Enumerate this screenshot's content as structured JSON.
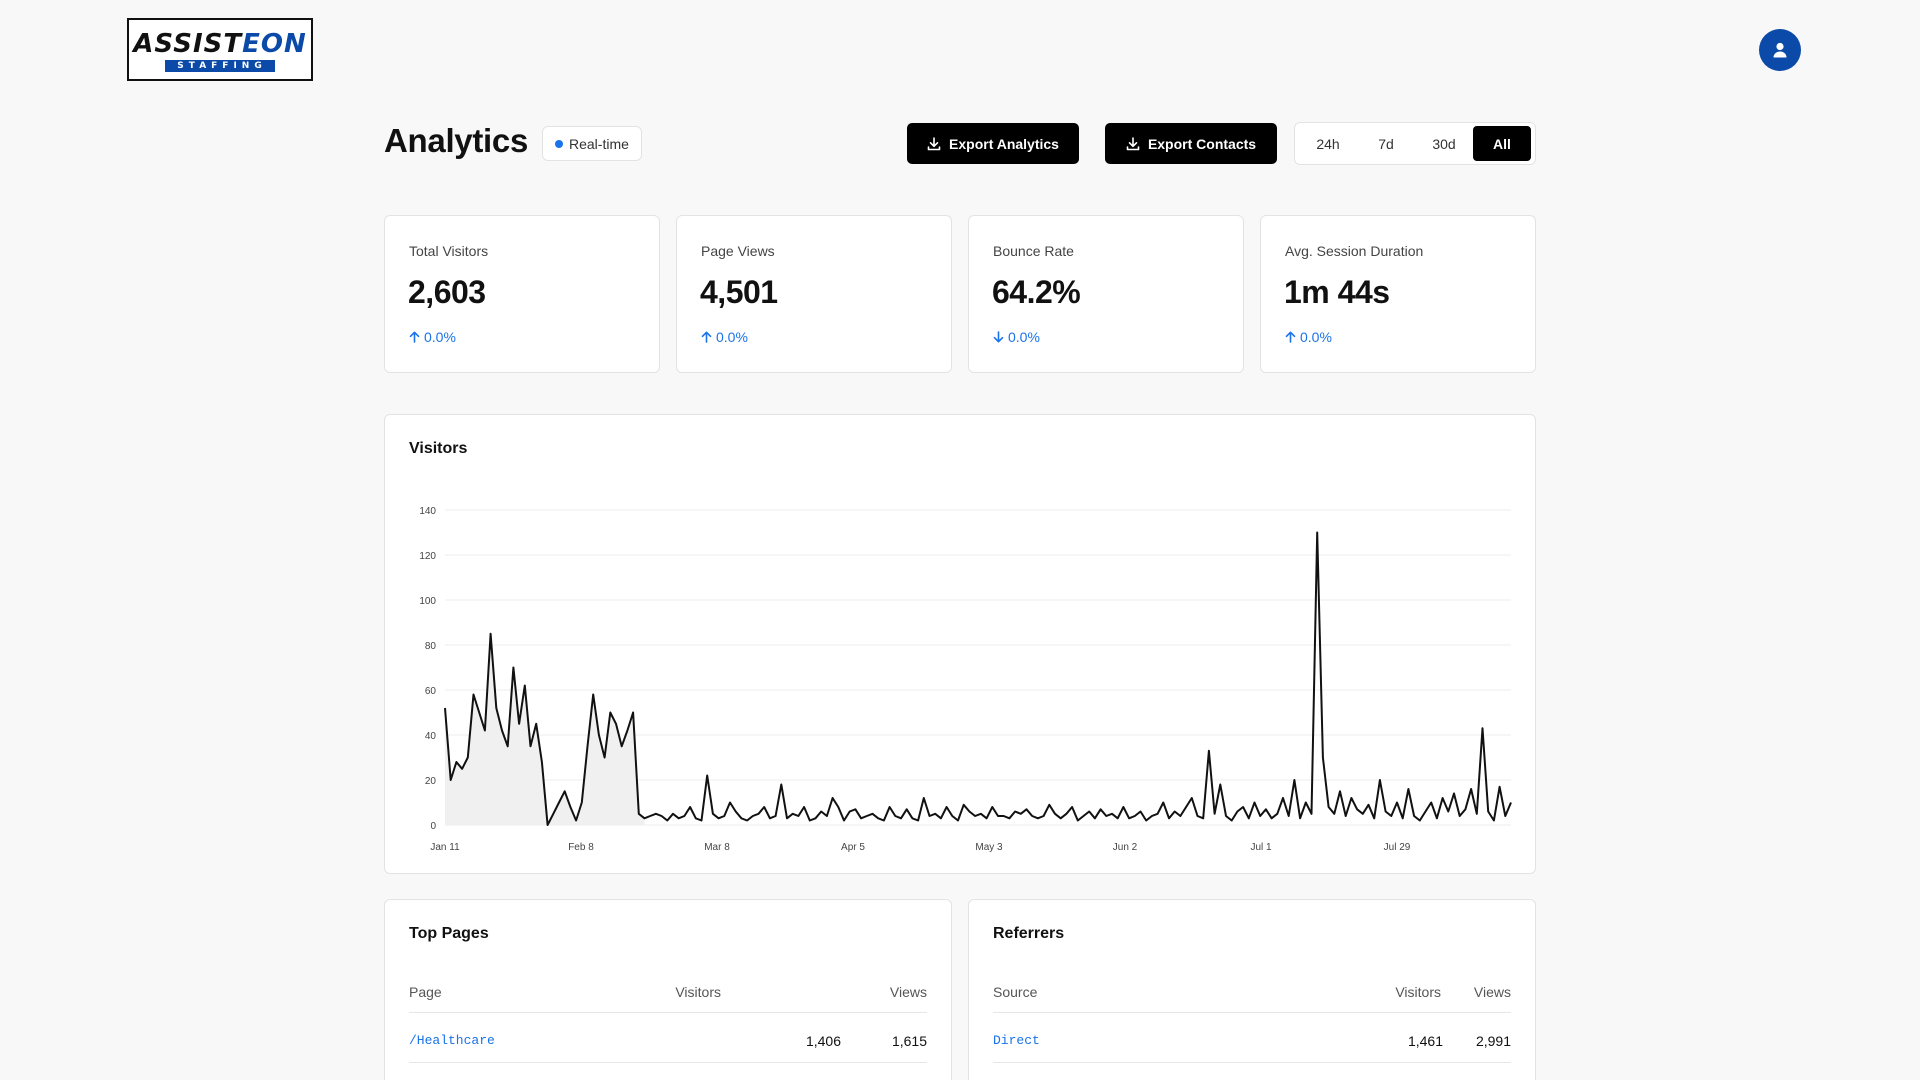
{
  "logo": {
    "word_dark": "ASSIST",
    "word_blue": "EON",
    "tagline": "STAFFING"
  },
  "header": {
    "title": "Analytics",
    "realtime_label": "Real-time",
    "export_analytics": "Export Analytics",
    "export_contacts": "Export Contacts",
    "ranges": [
      "24h",
      "7d",
      "30d",
      "All"
    ],
    "active_range": "All"
  },
  "stats": [
    {
      "label": "Total Visitors",
      "value": "2,603",
      "change": "0.0%",
      "direction": "up"
    },
    {
      "label": "Page Views",
      "value": "4,501",
      "change": "0.0%",
      "direction": "up"
    },
    {
      "label": "Bounce Rate",
      "value": "64.2%",
      "change": "0.0%",
      "direction": "down"
    },
    {
      "label": "Avg. Session Duration",
      "value": "1m 44s",
      "change": "0.0%",
      "direction": "up"
    }
  ],
  "chart_card": {
    "title": "Visitors"
  },
  "chart_data": {
    "type": "area",
    "title": "Visitors",
    "x_start": "Jan 11",
    "x_end": "Aug 21",
    "x_tick_labels": [
      "Jan 11",
      "Feb 8",
      "Mar 8",
      "Apr 5",
      "May 3",
      "Jun 2",
      "Jul 1",
      "Jul 29"
    ],
    "ylim": [
      0,
      140
    ],
    "y_ticks": [
      0,
      20,
      40,
      60,
      80,
      100,
      120,
      140
    ],
    "grid": true,
    "series": [
      {
        "values": [
          52,
          20,
          28,
          25,
          30,
          58,
          50,
          42,
          85,
          52,
          42,
          35,
          70,
          45,
          62,
          35,
          45,
          28,
          0,
          5,
          10,
          15,
          8,
          2,
          10,
          35,
          58,
          40,
          30,
          50,
          45,
          35,
          42,
          50,
          5,
          3,
          4,
          5,
          4,
          2,
          5,
          3,
          4,
          8,
          3,
          2,
          22,
          5,
          3,
          4,
          10,
          6,
          3,
          2,
          4,
          5,
          8,
          3,
          4,
          18,
          3,
          5,
          4,
          8,
          2,
          3,
          6,
          4,
          12,
          8,
          2,
          6,
          7,
          3,
          4,
          5,
          3,
          2,
          8,
          4,
          3,
          7,
          3,
          2,
          12,
          4,
          5,
          3,
          8,
          4,
          2,
          9,
          6,
          4,
          5,
          3,
          8,
          4,
          4,
          3,
          6,
          5,
          7,
          4,
          3,
          4,
          9,
          5,
          3,
          5,
          8,
          2,
          4,
          6,
          3,
          7,
          4,
          5,
          3,
          8,
          3,
          4,
          6,
          2,
          4,
          5,
          10,
          3,
          6,
          4,
          8,
          12,
          4,
          3,
          33,
          5,
          18,
          4,
          2,
          6,
          8,
          3,
          10,
          4,
          7,
          3,
          5,
          12,
          4,
          20,
          3,
          10,
          5,
          130,
          30,
          8,
          5,
          15,
          4,
          12,
          7,
          5,
          9,
          3,
          20,
          6,
          4,
          10,
          3,
          16,
          4,
          2,
          6,
          10,
          3,
          12,
          6,
          14,
          4,
          7,
          16,
          5,
          43,
          6,
          2,
          17,
          4,
          10
        ]
      }
    ]
  },
  "top_pages": {
    "title": "Top Pages",
    "headers": {
      "page": "Page",
      "visitors": "Visitors",
      "views": "Views"
    },
    "rows": [
      {
        "page": "/Healthcare",
        "visitors": "1,406",
        "views": "1,615"
      }
    ]
  },
  "referrers": {
    "title": "Referrers",
    "headers": {
      "source": "Source",
      "visitors": "Visitors",
      "views": "Views"
    },
    "rows": [
      {
        "source": "Direct",
        "visitors": "1,461",
        "views": "2,991"
      }
    ]
  }
}
